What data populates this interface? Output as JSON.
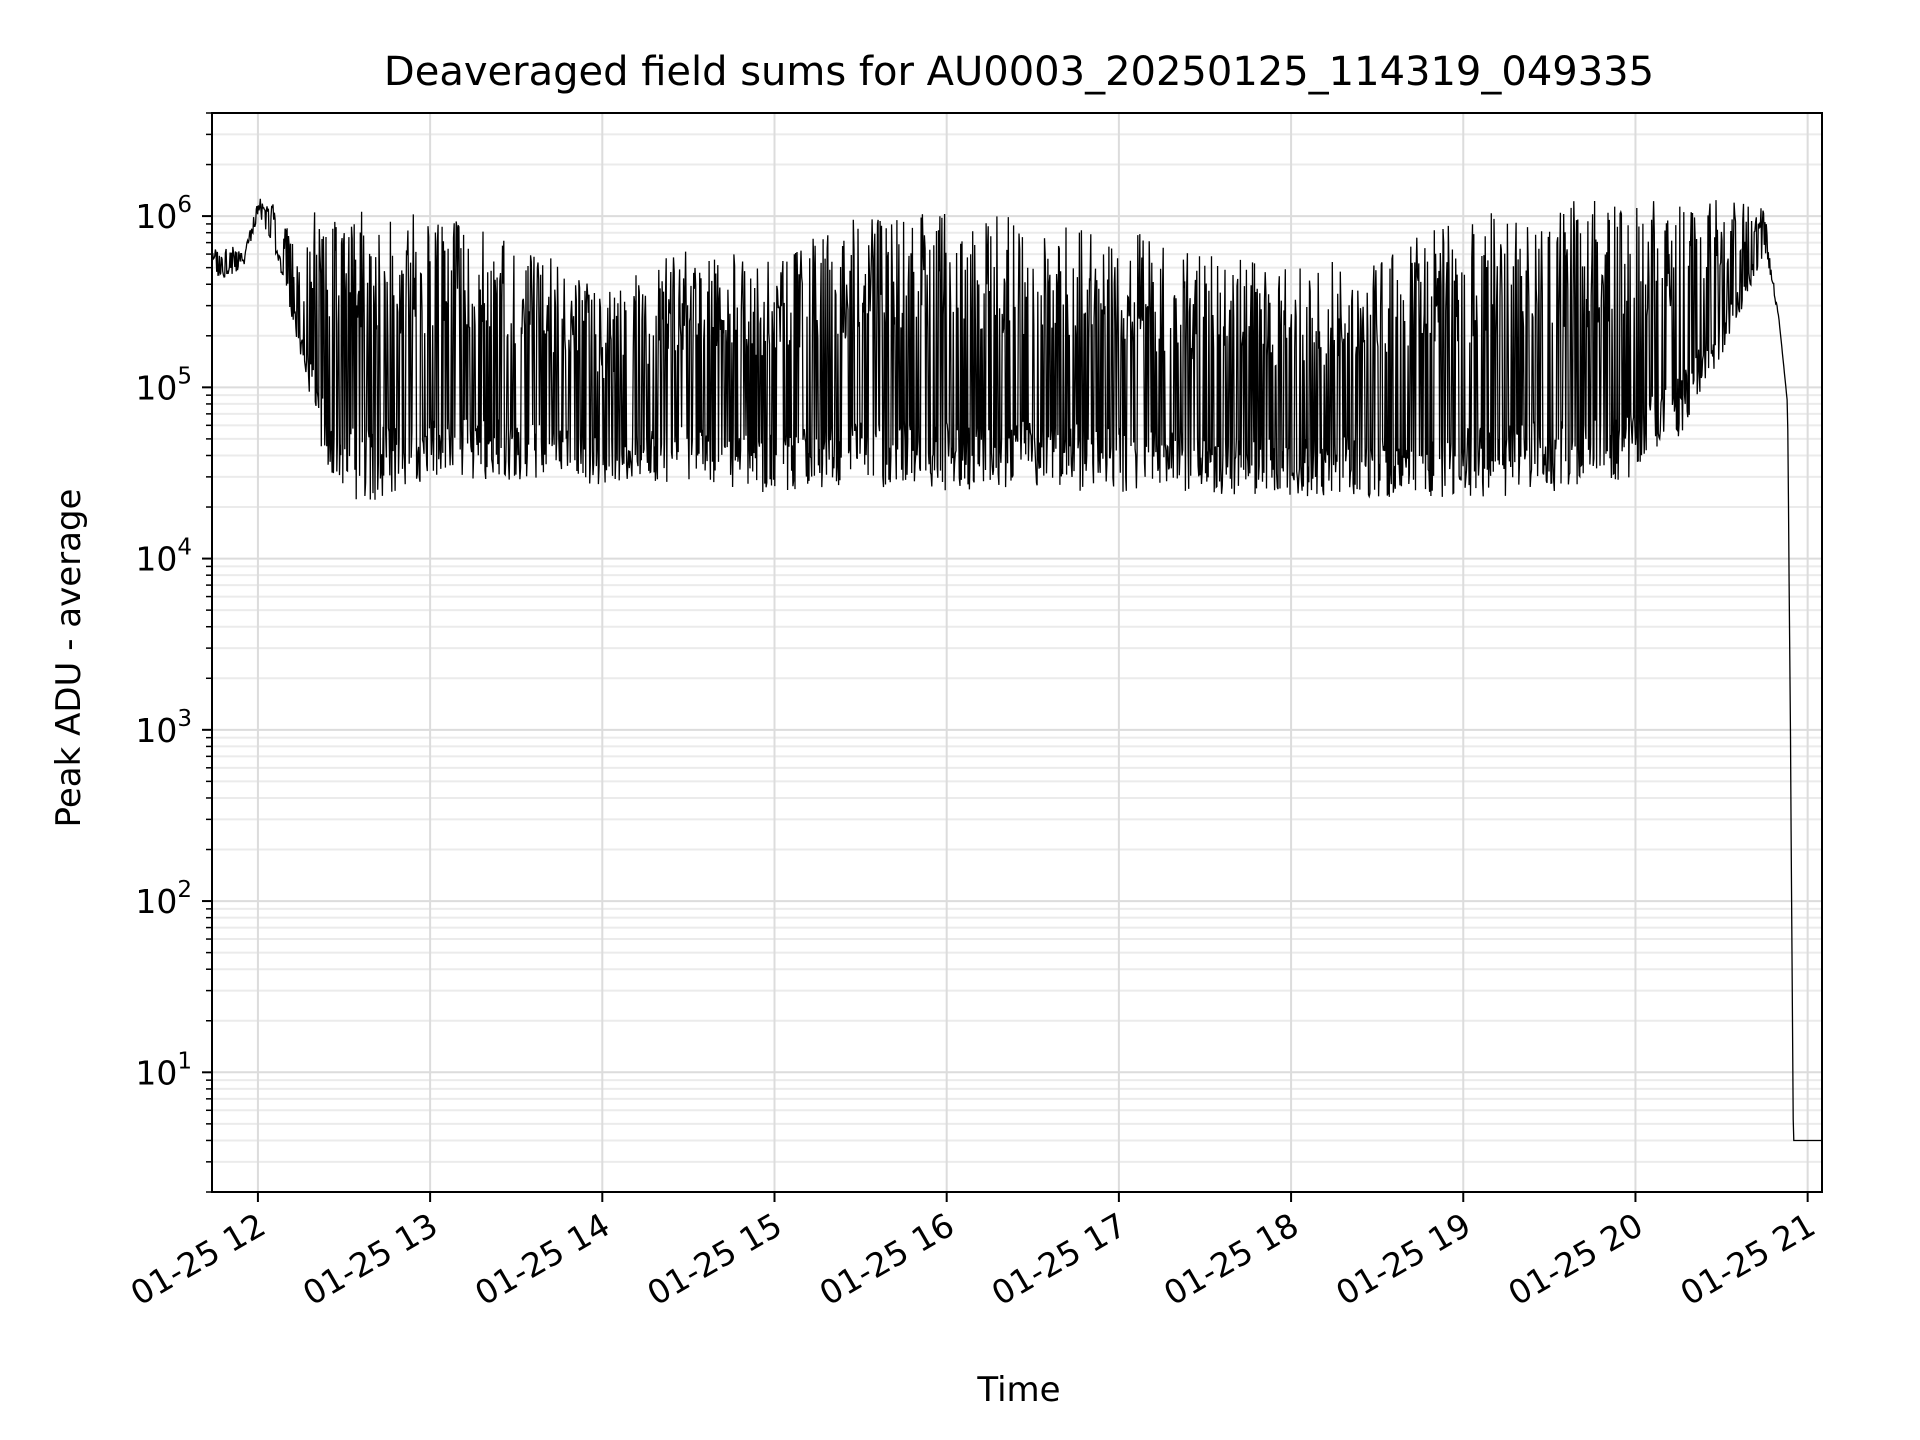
{
  "chart_data": {
    "type": "line",
    "title": "Deaveraged field sums for AU0003_20250125_114319_049335",
    "xlabel": "Time",
    "ylabel": "Peak ADU - average",
    "yscale": "log",
    "ylim": [
      2,
      4000000
    ],
    "xlim": [
      "2025-01-25 11:44",
      "2025-01-25 21:05"
    ],
    "x_ticks": [
      "2025-01-25 12:00",
      "2025-01-25 13:00",
      "2025-01-25 14:00",
      "2025-01-25 15:00",
      "2025-01-25 16:00",
      "2025-01-25 17:00",
      "2025-01-25 18:00",
      "2025-01-25 19:00",
      "2025-01-25 20:00",
      "2025-01-25 21:00"
    ],
    "x_tick_labels": [
      "01-25 12",
      "01-25 13",
      "01-25 14",
      "01-25 15",
      "01-25 16",
      "01-25 17",
      "01-25 18",
      "01-25 19",
      "01-25 20",
      "01-25 21"
    ],
    "y_tick_values": [
      10,
      100,
      1000,
      10000,
      100000,
      1000000
    ],
    "y_tick_bases": [
      "10",
      "10",
      "10",
      "10",
      "10",
      "10"
    ],
    "y_tick_exponents": [
      "1",
      "2",
      "3",
      "4",
      "5",
      "6"
    ],
    "grid": true,
    "line_color": "#000000",
    "series": [
      {
        "x": [
          "2025-01-25 11:44",
          "2025-01-25 11:50",
          "2025-01-25 11:55",
          "2025-01-25 12:00",
          "2025-01-25 12:05",
          "2025-01-25 12:10",
          "2025-01-25 12:15",
          "2025-01-25 12:20",
          "2025-01-25 12:25",
          "2025-01-25 12:30",
          "2025-01-25 12:40",
          "2025-01-25 12:50",
          "2025-01-25 13:00",
          "2025-01-25 13:30",
          "2025-01-25 14:00",
          "2025-01-25 14:30",
          "2025-01-25 15:00",
          "2025-01-25 15:30",
          "2025-01-25 16:00",
          "2025-01-25 16:30",
          "2025-01-25 17:00",
          "2025-01-25 17:30",
          "2025-01-25 18:00",
          "2025-01-25 18:30",
          "2025-01-25 19:00",
          "2025-01-25 19:30",
          "2025-01-25 20:00",
          "2025-01-25 20:15",
          "2025-01-25 20:30",
          "2025-01-25 20:45",
          "2025-01-25 20:50",
          "2025-01-25 20:53",
          "2025-01-25 20:54",
          "2025-01-25 20:55",
          "2025-01-25 21:05"
        ],
        "low": [
          420000,
          450000,
          500000,
          1000000,
          700000,
          350000,
          150000,
          60000,
          30000,
          22000,
          21000,
          25000,
          28000,
          28000,
          27000,
          26000,
          24000,
          26000,
          25000,
          26000,
          24000,
          24000,
          23000,
          23000,
          22000,
          24000,
          30000,
          50000,
          150000,
          600000,
          250000,
          80000,
          1000,
          4,
          4
        ],
        "high": [
          650000,
          700000,
          600000,
          1300000,
          1200000,
          900000,
          500000,
          1100000,
          1100000,
          1100000,
          1100000,
          1050000,
          1000000,
          800000,
          350000,
          700000,
          600000,
          1000000,
          1050000,
          1000000,
          900000,
          600000,
          500000,
          600000,
          1000000,
          1200000,
          1300000,
          1400000,
          1300000,
          1100000,
          250000,
          80000,
          1000,
          4,
          4
        ]
      }
    ]
  }
}
